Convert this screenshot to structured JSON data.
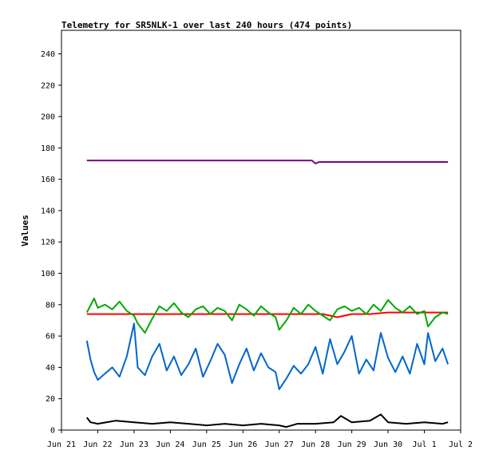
{
  "chart_data": {
    "type": "line",
    "title": "Telemetry for SR5NLK-1 over last 240 hours (474 points)",
    "xlabel": "",
    "ylabel": "Values",
    "ylim": [
      0,
      255
    ],
    "xlim_days": [
      0,
      11
    ],
    "yticks": [
      0,
      20,
      40,
      60,
      80,
      100,
      120,
      140,
      160,
      180,
      200,
      220,
      240
    ],
    "xticks": [
      {
        "label": "Jun 21",
        "day": 0
      },
      {
        "label": "Jun 22",
        "day": 1
      },
      {
        "label": "Jun 23",
        "day": 2
      },
      {
        "label": "Jun 24",
        "day": 3
      },
      {
        "label": "Jun 25",
        "day": 4
      },
      {
        "label": "Jun 26",
        "day": 5
      },
      {
        "label": "Jun 27",
        "day": 6
      },
      {
        "label": "Jun 28",
        "day": 7
      },
      {
        "label": "Jun 29",
        "day": 8
      },
      {
        "label": "Jun 30",
        "day": 9
      },
      {
        "label": "Jul 1",
        "day": 10
      },
      {
        "label": "Jul 2",
        "day": 11
      }
    ],
    "grid": false,
    "legend": "none",
    "series": [
      {
        "color": "#800080",
        "x": [
          0.7,
          2.0,
          3.0,
          4.0,
          5.0,
          6.0,
          6.8,
          6.9,
          6.95,
          7.0,
          7.1,
          8.0,
          9.0,
          10.0,
          10.65
        ],
        "y": [
          172,
          172,
          172,
          172,
          172,
          172,
          172,
          172,
          171,
          170,
          171,
          171,
          171,
          171,
          171
        ]
      },
      {
        "color": "#ff0000",
        "x": [
          0.7,
          1.5,
          2.5,
          3.5,
          4.5,
          5.5,
          6.5,
          7.2,
          7.6,
          7.8,
          8.0,
          8.5,
          9.0,
          9.5,
          10.0,
          10.65
        ],
        "y": [
          74,
          74,
          74,
          74,
          74,
          74,
          74,
          74,
          72,
          73,
          74,
          74,
          75,
          75,
          75,
          75
        ]
      },
      {
        "color": "#00aa00",
        "x": [
          0.7,
          0.9,
          1.0,
          1.2,
          1.4,
          1.6,
          1.8,
          2.0,
          2.1,
          2.3,
          2.5,
          2.7,
          2.9,
          3.1,
          3.3,
          3.5,
          3.7,
          3.9,
          4.1,
          4.3,
          4.5,
          4.7,
          4.9,
          5.1,
          5.3,
          5.5,
          5.7,
          5.9,
          6.0,
          6.2,
          6.4,
          6.6,
          6.8,
          7.0,
          7.2,
          7.4,
          7.6,
          7.8,
          8.0,
          8.2,
          8.4,
          8.6,
          8.8,
          9.0,
          9.2,
          9.4,
          9.6,
          9.8,
          10.0,
          10.1,
          10.3,
          10.5,
          10.65
        ],
        "y": [
          75,
          84,
          78,
          80,
          77,
          82,
          76,
          73,
          68,
          62,
          71,
          79,
          76,
          81,
          75,
          72,
          77,
          79,
          74,
          78,
          76,
          70,
          80,
          77,
          73,
          79,
          75,
          72,
          64,
          70,
          78,
          74,
          80,
          76,
          73,
          70,
          77,
          79,
          76,
          78,
          74,
          80,
          76,
          83,
          78,
          75,
          79,
          74,
          76,
          66,
          72,
          75,
          74
        ]
      },
      {
        "color": "#0066cc",
        "x": [
          0.7,
          0.8,
          0.9,
          1.0,
          1.2,
          1.4,
          1.6,
          1.8,
          2.0,
          2.1,
          2.3,
          2.5,
          2.7,
          2.9,
          3.1,
          3.3,
          3.5,
          3.7,
          3.9,
          4.1,
          4.3,
          4.5,
          4.7,
          4.9,
          5.1,
          5.3,
          5.5,
          5.7,
          5.9,
          6.0,
          6.2,
          6.4,
          6.6,
          6.8,
          7.0,
          7.2,
          7.4,
          7.6,
          7.8,
          8.0,
          8.2,
          8.4,
          8.6,
          8.8,
          9.0,
          9.2,
          9.4,
          9.6,
          9.8,
          10.0,
          10.1,
          10.3,
          10.5,
          10.65
        ],
        "y": [
          57,
          45,
          37,
          32,
          36,
          40,
          34,
          47,
          68,
          40,
          35,
          47,
          55,
          38,
          47,
          35,
          42,
          52,
          34,
          44,
          55,
          48,
          30,
          42,
          52,
          38,
          49,
          40,
          37,
          26,
          33,
          41,
          36,
          42,
          53,
          36,
          58,
          42,
          50,
          60,
          36,
          45,
          38,
          62,
          46,
          37,
          47,
          36,
          55,
          42,
          62,
          44,
          52,
          42
        ]
      },
      {
        "color": "#000000",
        "x": [
          0.7,
          0.8,
          1.0,
          1.5,
          2.0,
          2.5,
          3.0,
          3.5,
          4.0,
          4.5,
          5.0,
          5.5,
          6.0,
          6.2,
          6.5,
          7.0,
          7.5,
          7.7,
          8.0,
          8.5,
          8.8,
          9.0,
          9.5,
          10.0,
          10.5,
          10.65
        ],
        "y": [
          8,
          5,
          4,
          6,
          5,
          4,
          5,
          4,
          3,
          4,
          3,
          4,
          3,
          2,
          4,
          4,
          5,
          9,
          5,
          6,
          10,
          5,
          4,
          5,
          4,
          5
        ]
      }
    ]
  }
}
